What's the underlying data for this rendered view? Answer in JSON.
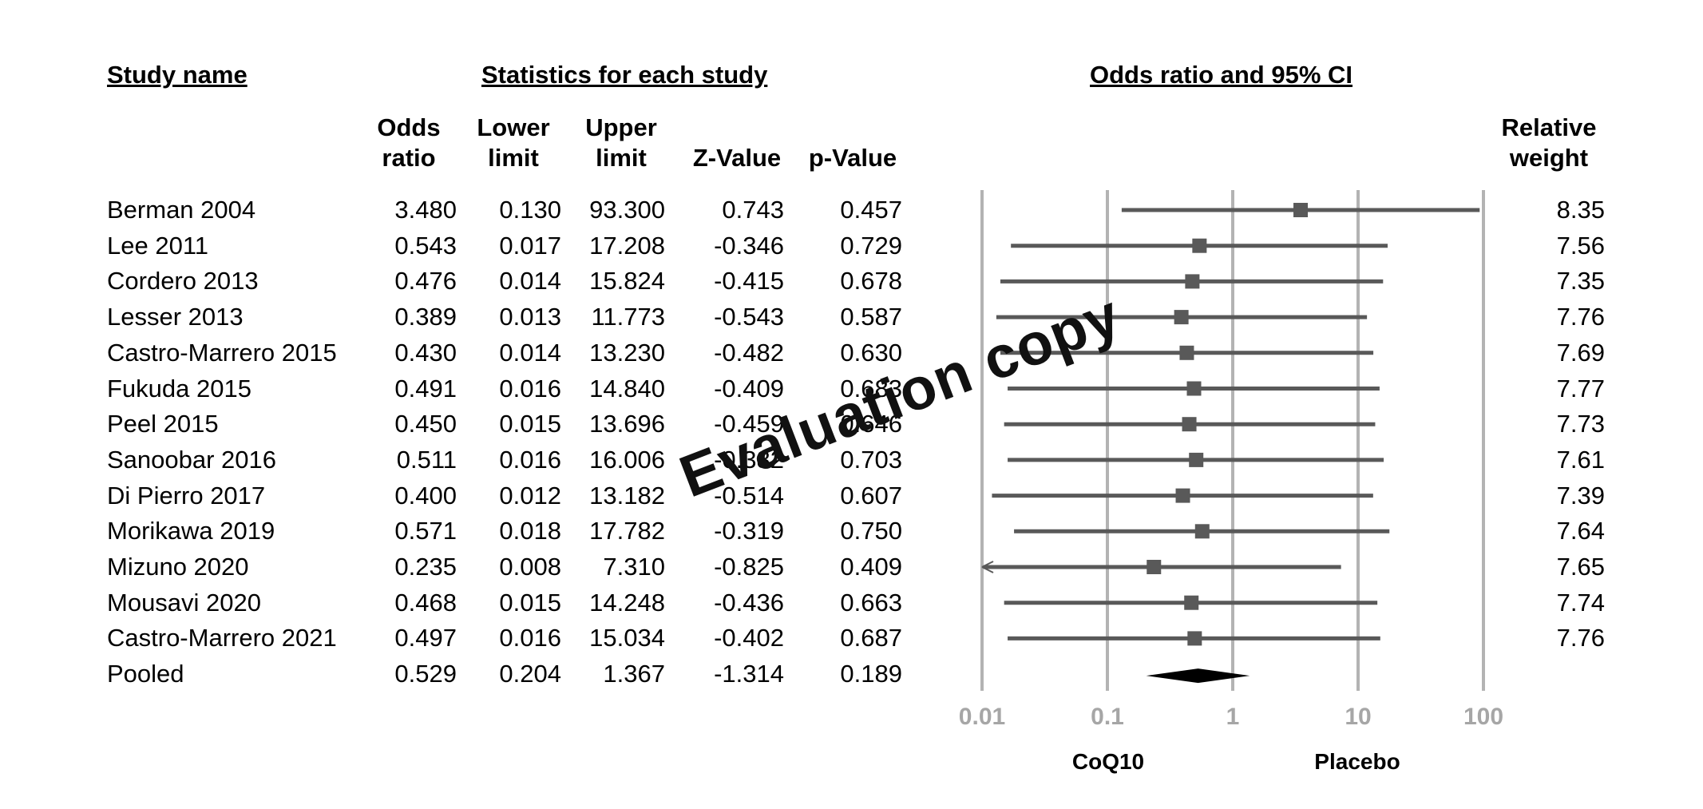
{
  "headers": {
    "study_name": "Study name",
    "statistics": "Statistics for each study",
    "plot": "Odds ratio and 95% CI"
  },
  "columns": {
    "odds_ratio": [
      "Odds",
      "ratio"
    ],
    "lower_limit": [
      "Lower",
      "limit"
    ],
    "upper_limit": [
      "Upper",
      "limit"
    ],
    "z_value": "Z-Value",
    "p_value": "p-Value",
    "relative_weight": [
      "Relative",
      "weight"
    ]
  },
  "rows": [
    {
      "name": "Berman 2004",
      "or": "3.480",
      "lower": "0.130",
      "upper": "93.300",
      "z": "0.743",
      "p": "0.457",
      "weight": "8.35"
    },
    {
      "name": "Lee 2011",
      "or": "0.543",
      "lower": "0.017",
      "upper": "17.208",
      "z": "-0.346",
      "p": "0.729",
      "weight": "7.56"
    },
    {
      "name": "Cordero 2013",
      "or": "0.476",
      "lower": "0.014",
      "upper": "15.824",
      "z": "-0.415",
      "p": "0.678",
      "weight": "7.35"
    },
    {
      "name": "Lesser 2013",
      "or": "0.389",
      "lower": "0.013",
      "upper": "11.773",
      "z": "-0.543",
      "p": "0.587",
      "weight": "7.76"
    },
    {
      "name": "Castro-Marrero 2015",
      "or": "0.430",
      "lower": "0.014",
      "upper": "13.230",
      "z": "-0.482",
      "p": "0.630",
      "weight": "7.69"
    },
    {
      "name": "Fukuda 2015",
      "or": "0.491",
      "lower": "0.016",
      "upper": "14.840",
      "z": "-0.409",
      "p": "0.683",
      "weight": "7.77"
    },
    {
      "name": "Peel 2015",
      "or": "0.450",
      "lower": "0.015",
      "upper": "13.696",
      "z": "-0.459",
      "p": "0.646",
      "weight": "7.73"
    },
    {
      "name": "Sanoobar 2016",
      "or": "0.511",
      "lower": "0.016",
      "upper": "16.006",
      "z": "-0.382",
      "p": "0.703",
      "weight": "7.61"
    },
    {
      "name": "Di Pierro 2017",
      "or": "0.400",
      "lower": "0.012",
      "upper": "13.182",
      "z": "-0.514",
      "p": "0.607",
      "weight": "7.39"
    },
    {
      "name": "Morikawa 2019",
      "or": "0.571",
      "lower": "0.018",
      "upper": "17.782",
      "z": "-0.319",
      "p": "0.750",
      "weight": "7.64"
    },
    {
      "name": "Mizuno 2020",
      "or": "0.235",
      "lower": "0.008",
      "upper": "7.310",
      "z": "-0.825",
      "p": "0.409",
      "weight": "7.65"
    },
    {
      "name": "Mousavi 2020",
      "or": "0.468",
      "lower": "0.015",
      "upper": "14.248",
      "z": "-0.436",
      "p": "0.663",
      "weight": "7.74"
    },
    {
      "name": "Castro-Marrero 2021",
      "or": "0.497",
      "lower": "0.016",
      "upper": "15.034",
      "z": "-0.402",
      "p": "0.687",
      "weight": "7.76"
    },
    {
      "name": "Pooled",
      "or": "0.529",
      "lower": "0.204",
      "upper": "1.367",
      "z": "-1.314",
      "p": "0.189",
      "weight": ""
    }
  ],
  "chart_data": {
    "type": "forest",
    "x_scale": "log",
    "xlim": [
      0.01,
      100
    ],
    "x_ticks": [
      "0.01",
      "0.1",
      "1",
      "10",
      "100"
    ],
    "x_tick_values": [
      0.01,
      0.1,
      1,
      10,
      100
    ],
    "left_label": "CoQ10",
    "right_label": "Placebo",
    "gridlines": true,
    "grid_color": "#b3b3b3",
    "marker_color": "#595959",
    "pooled_color": "#000000",
    "studies": [
      {
        "name": "Berman 2004",
        "or": 3.48,
        "lower": 0.13,
        "upper": 93.3
      },
      {
        "name": "Lee 2011",
        "or": 0.543,
        "lower": 0.017,
        "upper": 17.208
      },
      {
        "name": "Cordero 2013",
        "or": 0.476,
        "lower": 0.014,
        "upper": 15.824
      },
      {
        "name": "Lesser 2013",
        "or": 0.389,
        "lower": 0.013,
        "upper": 11.773
      },
      {
        "name": "Castro-Marrero 2015",
        "or": 0.43,
        "lower": 0.014,
        "upper": 13.23
      },
      {
        "name": "Fukuda 2015",
        "or": 0.491,
        "lower": 0.016,
        "upper": 14.84
      },
      {
        "name": "Peel 2015",
        "or": 0.45,
        "lower": 0.015,
        "upper": 13.696
      },
      {
        "name": "Sanoobar 2016",
        "or": 0.511,
        "lower": 0.016,
        "upper": 16.006
      },
      {
        "name": "Di Pierro 2017",
        "or": 0.4,
        "lower": 0.012,
        "upper": 13.182
      },
      {
        "name": "Morikawa 2019",
        "or": 0.571,
        "lower": 0.018,
        "upper": 17.782
      },
      {
        "name": "Mizuno 2020",
        "or": 0.235,
        "lower": 0.008,
        "upper": 7.31
      },
      {
        "name": "Mousavi 2020",
        "or": 0.468,
        "lower": 0.015,
        "upper": 14.248
      },
      {
        "name": "Castro-Marrero 2021",
        "or": 0.497,
        "lower": 0.016,
        "upper": 15.034
      }
    ],
    "pooled": {
      "name": "Pooled",
      "or": 0.529,
      "lower": 0.204,
      "upper": 1.367
    }
  },
  "watermark": "Evaluation copy"
}
